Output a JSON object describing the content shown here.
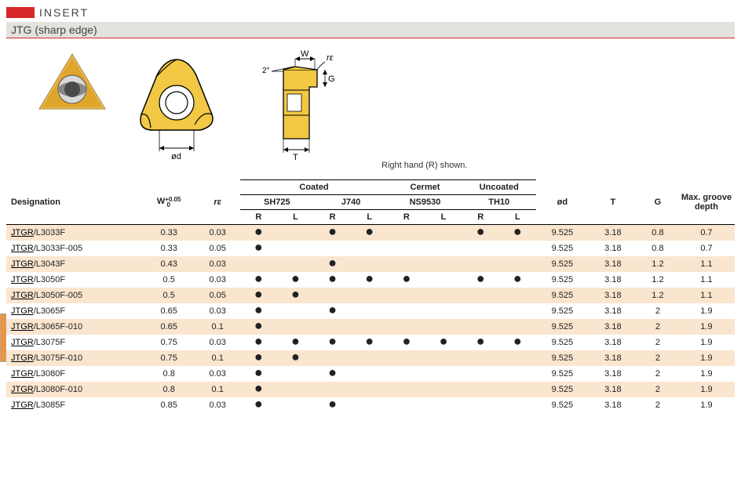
{
  "header": {
    "insert": "INSERT",
    "subtype": "JTG (sharp edge)",
    "caption": "Right hand (R) shown."
  },
  "columns": {
    "designation": "Designation",
    "w": "W",
    "w_tol": "+0.05\n  0",
    "re": "rε",
    "coated": "Coated",
    "cermet": "Cermet",
    "uncoated": "Uncoated",
    "sh725": "SH725",
    "j740": "J740",
    "ns9530": "NS9530",
    "th10": "TH10",
    "R": "R",
    "L": "L",
    "od": "ød",
    "T": "T",
    "G": "G",
    "max": "Max. groove depth"
  },
  "rows": [
    {
      "prefix": "JTGR",
      "desig": "/L3033F",
      "w": "0.33",
      "re": "0.03",
      "sh725": {
        "R": true,
        "L": false
      },
      "j740": {
        "R": true,
        "L": true
      },
      "ns9530": {
        "R": false,
        "L": false
      },
      "th10": {
        "R": true,
        "L": true
      },
      "od": "9.525",
      "T": "3.18",
      "G": "0.8",
      "max": "0.7"
    },
    {
      "prefix": "JTGR",
      "desig": "/L3033F-005",
      "w": "0.33",
      "re": "0.05",
      "sh725": {
        "R": true,
        "L": false
      },
      "j740": {
        "R": false,
        "L": false
      },
      "ns9530": {
        "R": false,
        "L": false
      },
      "th10": {
        "R": false,
        "L": false
      },
      "od": "9.525",
      "T": "3.18",
      "G": "0.8",
      "max": "0.7"
    },
    {
      "prefix": "JTGR",
      "desig": "/L3043F",
      "w": "0.43",
      "re": "0.03",
      "sh725": {
        "R": false,
        "L": false
      },
      "j740": {
        "R": true,
        "L": false
      },
      "ns9530": {
        "R": false,
        "L": false
      },
      "th10": {
        "R": false,
        "L": false
      },
      "od": "9.525",
      "T": "3.18",
      "G": "1.2",
      "max": "1.1"
    },
    {
      "prefix": "JTGR",
      "desig": "/L3050F",
      "w": "0.5",
      "re": "0.03",
      "sh725": {
        "R": true,
        "L": true
      },
      "j740": {
        "R": true,
        "L": true
      },
      "ns9530": {
        "R": true,
        "L": false
      },
      "th10": {
        "R": true,
        "L": true
      },
      "od": "9.525",
      "T": "3.18",
      "G": "1.2",
      "max": "1.1"
    },
    {
      "prefix": "JTGR",
      "desig": "/L3050F-005",
      "w": "0.5",
      "re": "0.05",
      "sh725": {
        "R": true,
        "L": true
      },
      "j740": {
        "R": false,
        "L": false
      },
      "ns9530": {
        "R": false,
        "L": false
      },
      "th10": {
        "R": false,
        "L": false
      },
      "od": "9.525",
      "T": "3.18",
      "G": "1.2",
      "max": "1.1"
    },
    {
      "prefix": "JTGR",
      "desig": "/L3065F",
      "w": "0.65",
      "re": "0.03",
      "sh725": {
        "R": true,
        "L": false
      },
      "j740": {
        "R": true,
        "L": false
      },
      "ns9530": {
        "R": false,
        "L": false
      },
      "th10": {
        "R": false,
        "L": false
      },
      "od": "9.525",
      "T": "3.18",
      "G": "2",
      "max": "1.9"
    },
    {
      "prefix": "JTGR",
      "desig": "/L3065F-010",
      "w": "0.65",
      "re": "0.1",
      "sh725": {
        "R": true,
        "L": false
      },
      "j740": {
        "R": false,
        "L": false
      },
      "ns9530": {
        "R": false,
        "L": false
      },
      "th10": {
        "R": false,
        "L": false
      },
      "od": "9.525",
      "T": "3.18",
      "G": "2",
      "max": "1.9"
    },
    {
      "prefix": "JTGR",
      "desig": "/L3075F",
      "w": "0.75",
      "re": "0.03",
      "sh725": {
        "R": true,
        "L": true
      },
      "j740": {
        "R": true,
        "L": true
      },
      "ns9530": {
        "R": true,
        "L": true
      },
      "th10": {
        "R": true,
        "L": true
      },
      "od": "9.525",
      "T": "3.18",
      "G": "2",
      "max": "1.9"
    },
    {
      "prefix": "JTGR",
      "desig": "/L3075F-010",
      "w": "0.75",
      "re": "0.1",
      "sh725": {
        "R": true,
        "L": true
      },
      "j740": {
        "R": false,
        "L": false
      },
      "ns9530": {
        "R": false,
        "L": false
      },
      "th10": {
        "R": false,
        "L": false
      },
      "od": "9.525",
      "T": "3.18",
      "G": "2",
      "max": "1.9"
    },
    {
      "prefix": "JTGR",
      "desig": "/L3080F",
      "w": "0.8",
      "re": "0.03",
      "sh725": {
        "R": true,
        "L": false
      },
      "j740": {
        "R": true,
        "L": false
      },
      "ns9530": {
        "R": false,
        "L": false
      },
      "th10": {
        "R": false,
        "L": false
      },
      "od": "9.525",
      "T": "3.18",
      "G": "2",
      "max": "1.9"
    },
    {
      "prefix": "JTGR",
      "desig": "/L3080F-010",
      "w": "0.8",
      "re": "0.1",
      "sh725": {
        "R": true,
        "L": false
      },
      "j740": {
        "R": false,
        "L": false
      },
      "ns9530": {
        "R": false,
        "L": false
      },
      "th10": {
        "R": false,
        "L": false
      },
      "od": "9.525",
      "T": "3.18",
      "G": "2",
      "max": "1.9"
    },
    {
      "prefix": "JTGR",
      "desig": "/L3085F",
      "w": "0.85",
      "re": "0.03",
      "sh725": {
        "R": true,
        "L": false
      },
      "j740": {
        "R": true,
        "L": false
      },
      "ns9530": {
        "R": false,
        "L": false
      },
      "th10": {
        "R": false,
        "L": false
      },
      "od": "9.525",
      "T": "3.18",
      "G": "2",
      "max": "1.9"
    }
  ],
  "diagram": {
    "insert_color": "#e9b63d",
    "insert_stroke": "#000000",
    "hole_fill": "#cfcfcf",
    "labels": {
      "od": "ød",
      "T": "T",
      "W": "W",
      "re": "rε",
      "angle": "2°",
      "G": "G"
    }
  }
}
